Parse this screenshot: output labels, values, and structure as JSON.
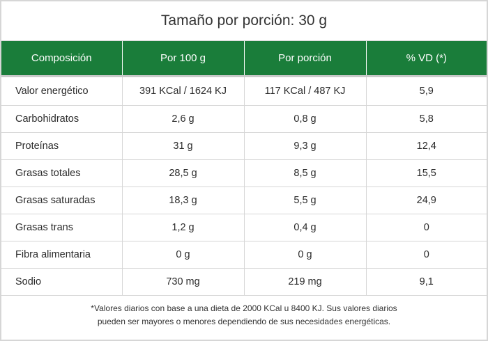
{
  "title": "Tamaño por porción: 30 g",
  "table": {
    "headers": [
      "Composición",
      "Por 100 g",
      "Por porción",
      "% VD (*)"
    ],
    "rows": [
      [
        "Valor energético",
        "391 KCal / 1624 KJ",
        "117 KCal / 487 KJ",
        "5,9"
      ],
      [
        "Carbohidratos",
        "2,6 g",
        "0,8 g",
        "5,8"
      ],
      [
        "Proteínas",
        "31 g",
        "9,3 g",
        "12,4"
      ],
      [
        "Grasas totales",
        "28,5 g",
        "8,5 g",
        "15,5"
      ],
      [
        "Grasas saturadas",
        "18,3 g",
        "5,5 g",
        "24,9"
      ],
      [
        "Grasas trans",
        "1,2 g",
        "0,4 g",
        "0"
      ],
      [
        "Fibra alimentaria",
        "0 g",
        "0 g",
        "0"
      ],
      [
        "Sodio",
        "730 mg",
        "219 mg",
        "9,1"
      ]
    ]
  },
  "footnote": {
    "line1": "*Valores diarios con base a una dieta de 2000 KCal u 8400 KJ. Sus valores diarios",
    "line2": "pueden ser mayores o menores dependiendo de sus necesidades energéticas."
  },
  "colors": {
    "header_bg": "#1a7d3a",
    "header_text": "#ffffff",
    "border": "#d6d6d6"
  }
}
